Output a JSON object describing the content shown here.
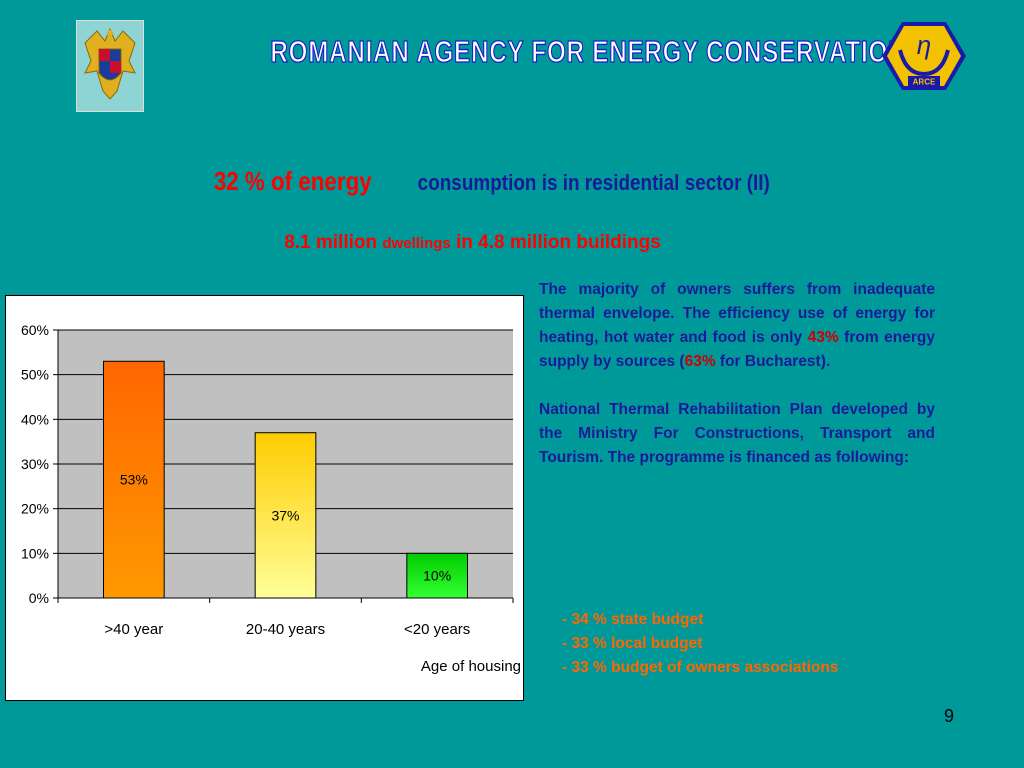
{
  "header": {
    "agency_title": "ROMANIAN AGENCY FOR ENERGY CONSERVATION",
    "logo_text": "ARCE",
    "logo_symbol": "η"
  },
  "headline": {
    "red_part": "32 % of  energy",
    "blue_part": "consumption is in residential sector (II)"
  },
  "subhead": {
    "part1": "8.1 million ",
    "part2": "dwellings",
    "part3": " in 4.8 million buildings"
  },
  "body": {
    "p1_a": "The majority of owners suffers from inadequate thermal envelope. The efficiency use of energy for heating, hot water and food is only ",
    "p1_pct1": "43%",
    "p1_b": " from energy supply by sources (",
    "p1_pct2": "63%",
    "p1_c": " for Bucharest).",
    "p2": "National Thermal Rehabilitation Plan developed by the Ministry For Constructions, Transport and Tourism. The programme is financed as following:"
  },
  "funding": [
    "- 34 % state budget",
    "- 33 % local budget",
    "- 33 % budget of owners associations"
  ],
  "slide_number": "9",
  "chart_data": {
    "type": "bar",
    "categories": [
      ">40 year",
      "20-40 years",
      "<20 years"
    ],
    "values": [
      53,
      37,
      10
    ],
    "data_labels": [
      "53%",
      "37%",
      "10%"
    ],
    "xlabel": "Age of housing",
    "ylabel": "",
    "ylim": [
      0,
      60
    ],
    "yticks": [
      "0%",
      "10%",
      "20%",
      "30%",
      "40%",
      "50%",
      "60%"
    ],
    "grid": true,
    "plot_background": "#c0c0c0",
    "bar_colors": [
      {
        "top": "#ff6600",
        "bottom": "#ff9900"
      },
      {
        "top": "#ffcc00",
        "bottom": "#ffff99"
      },
      {
        "top": "#00cc00",
        "bottom": "#33ff33"
      }
    ]
  }
}
